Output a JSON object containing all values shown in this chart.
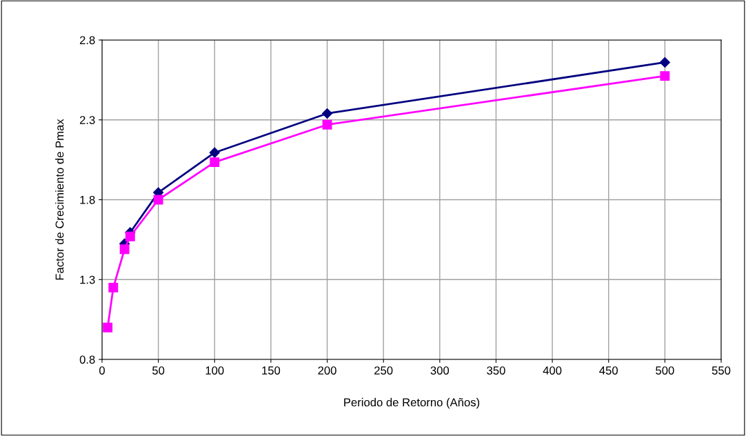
{
  "chart_data": {
    "type": "line",
    "xlabel": "Periodo de Retorno (Años)",
    "ylabel": "Factor de Crecimiento de Pmax",
    "xlim": [
      0,
      550
    ],
    "xticks": [
      0,
      50,
      100,
      150,
      200,
      250,
      300,
      350,
      400,
      450,
      500,
      550
    ],
    "ylim": [
      0.8,
      2.8
    ],
    "yticks": [
      0.8,
      1.3,
      1.8,
      2.3,
      2.8
    ],
    "grid": true,
    "legend": false,
    "series": [
      {
        "color": "#000080",
        "marker": "diamond",
        "x": [
          20,
          25,
          50,
          100,
          200,
          500
        ],
        "values": [
          1.525,
          1.595,
          1.845,
          2.095,
          2.34,
          2.66
        ]
      },
      {
        "color": "#ff00ff",
        "marker": "square",
        "x": [
          5,
          10,
          20,
          25,
          50,
          100,
          200,
          500
        ],
        "values": [
          1.0,
          1.25,
          1.49,
          1.57,
          1.8,
          2.035,
          2.27,
          2.575
        ]
      }
    ]
  }
}
